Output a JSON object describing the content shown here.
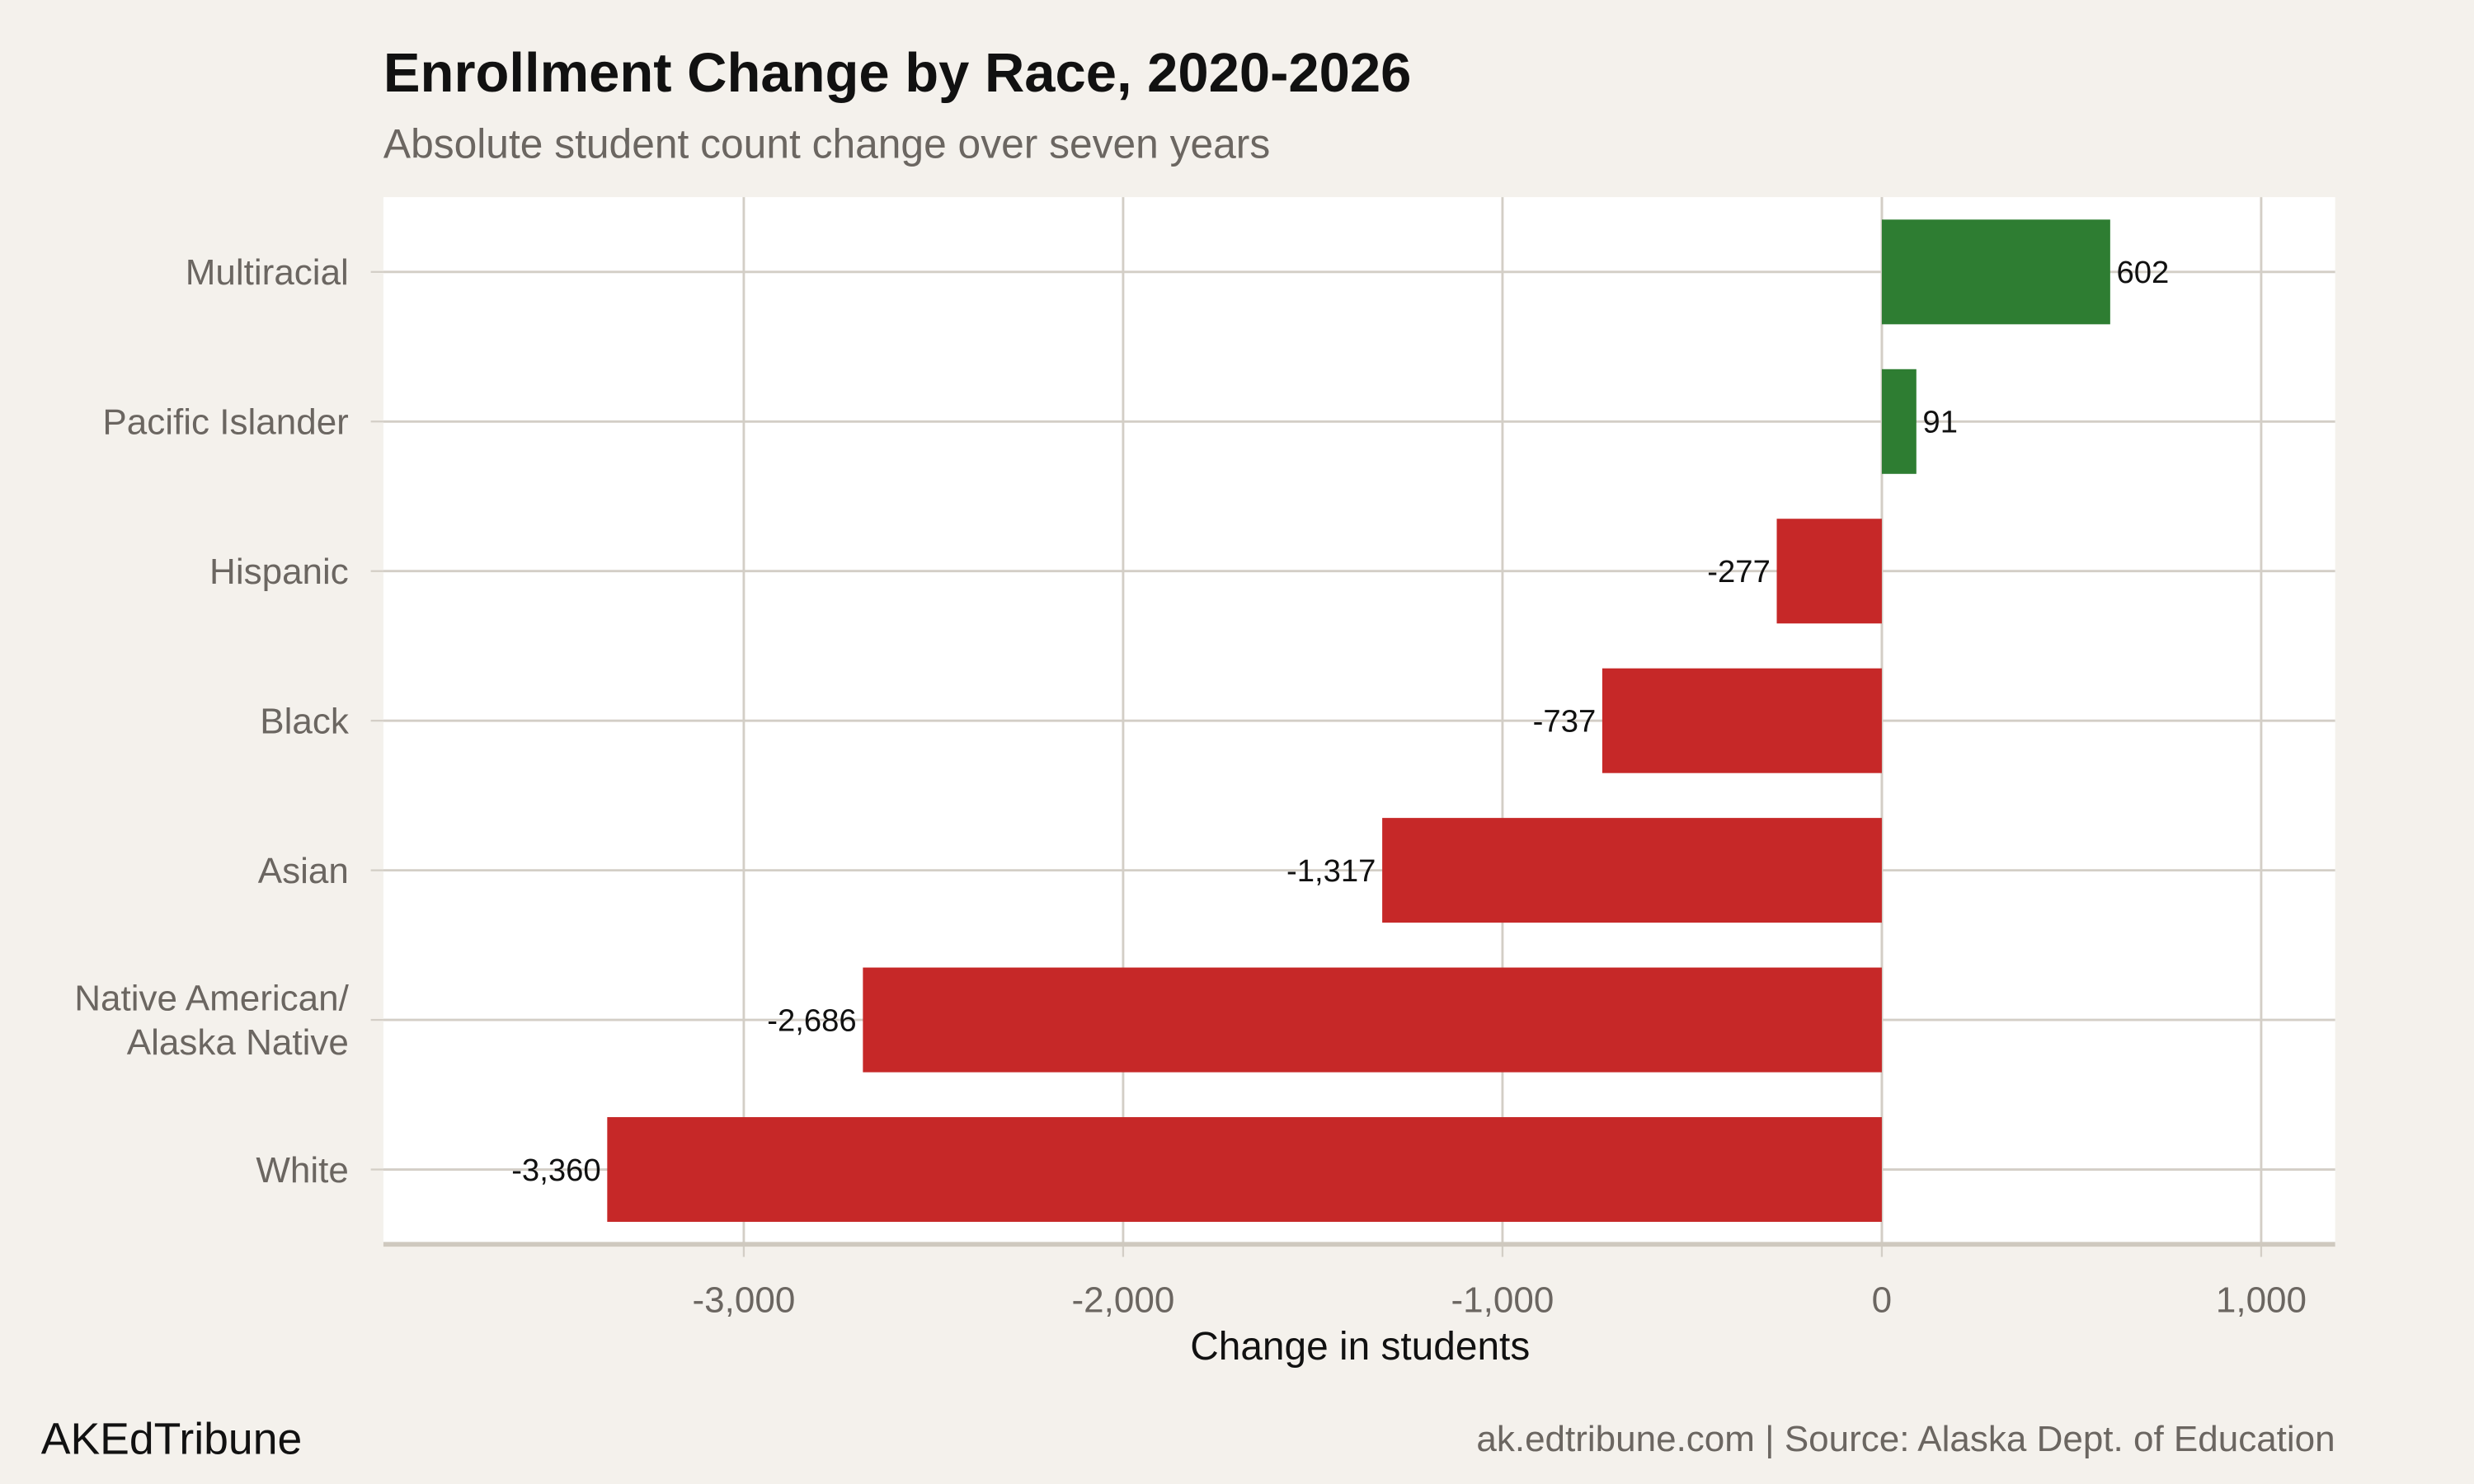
{
  "chart_data": {
    "type": "bar",
    "orientation": "horizontal",
    "title": "Enrollment Change by Race, 2020-2026",
    "subtitle": "Absolute student count change over seven years",
    "xlabel": "Change in students",
    "ylabel": "",
    "categories": [
      "Multiracial",
      "Pacific Islander",
      "Hispanic",
      "Black",
      "Asian",
      "Native American/\nAlaska Native",
      "White"
    ],
    "values": [
      602,
      91,
      -277,
      -737,
      -1317,
      -2686,
      -3360
    ],
    "data_labels": [
      "602",
      "91",
      "-277",
      "-737",
      "-1,317",
      "-2,686",
      "-3,360"
    ],
    "xlim": [
      -3950,
      1195
    ],
    "x_ticks": [
      -3000,
      -2000,
      -1000,
      0,
      1000
    ],
    "x_tick_labels": [
      "-3,000",
      "-2,000",
      "-1,000",
      "0",
      "1,000"
    ],
    "grid": true,
    "legend": "none",
    "colors": {
      "positive": "#2e7d32",
      "negative": "#c62828",
      "background": "#f4f1ec",
      "panel": "#ffffff",
      "grid": "#d3cec6"
    }
  },
  "footer": {
    "brand": "AKEdTribune",
    "source": "ak.edtribune.com | Source: Alaska Dept. of Education"
  }
}
